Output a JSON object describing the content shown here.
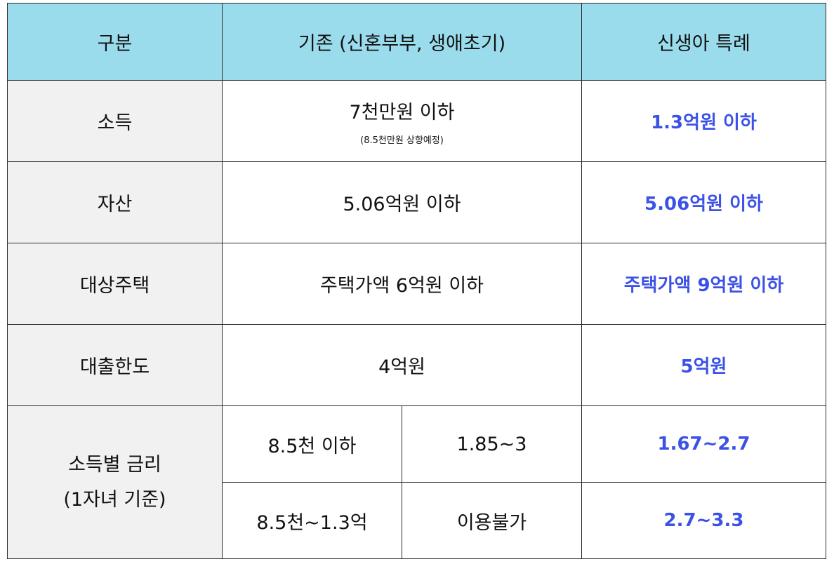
{
  "headers": {
    "category": "구분",
    "existing": "기존 (신혼부부, 생애초기)",
    "newborn": "신생아 특례"
  },
  "rows": [
    {
      "label": "소득",
      "existing": "7천만원 이하",
      "existing_note": "(8.5천만원 상향예정)",
      "special": "1.3억원 이하"
    },
    {
      "label": "자산",
      "existing": "5.06억원 이하",
      "special": "5.06억원 이하"
    },
    {
      "label": "대상주택",
      "existing": "주택가액 6억원 이하",
      "special": "주택가액 9억원 이하"
    },
    {
      "label": "대출한도",
      "existing": "4억원",
      "special": "5억원"
    }
  ],
  "rate": {
    "label_line1": "소득별 금리",
    "label_line2": "(1자녀 기준)",
    "subrows": [
      {
        "income": "8.5천 이하",
        "existing": "1.85~3",
        "special": "1.67~2.7"
      },
      {
        "income": "8.5천~1.3억",
        "existing": "이용불가",
        "special": "2.7~3.3"
      }
    ]
  }
}
